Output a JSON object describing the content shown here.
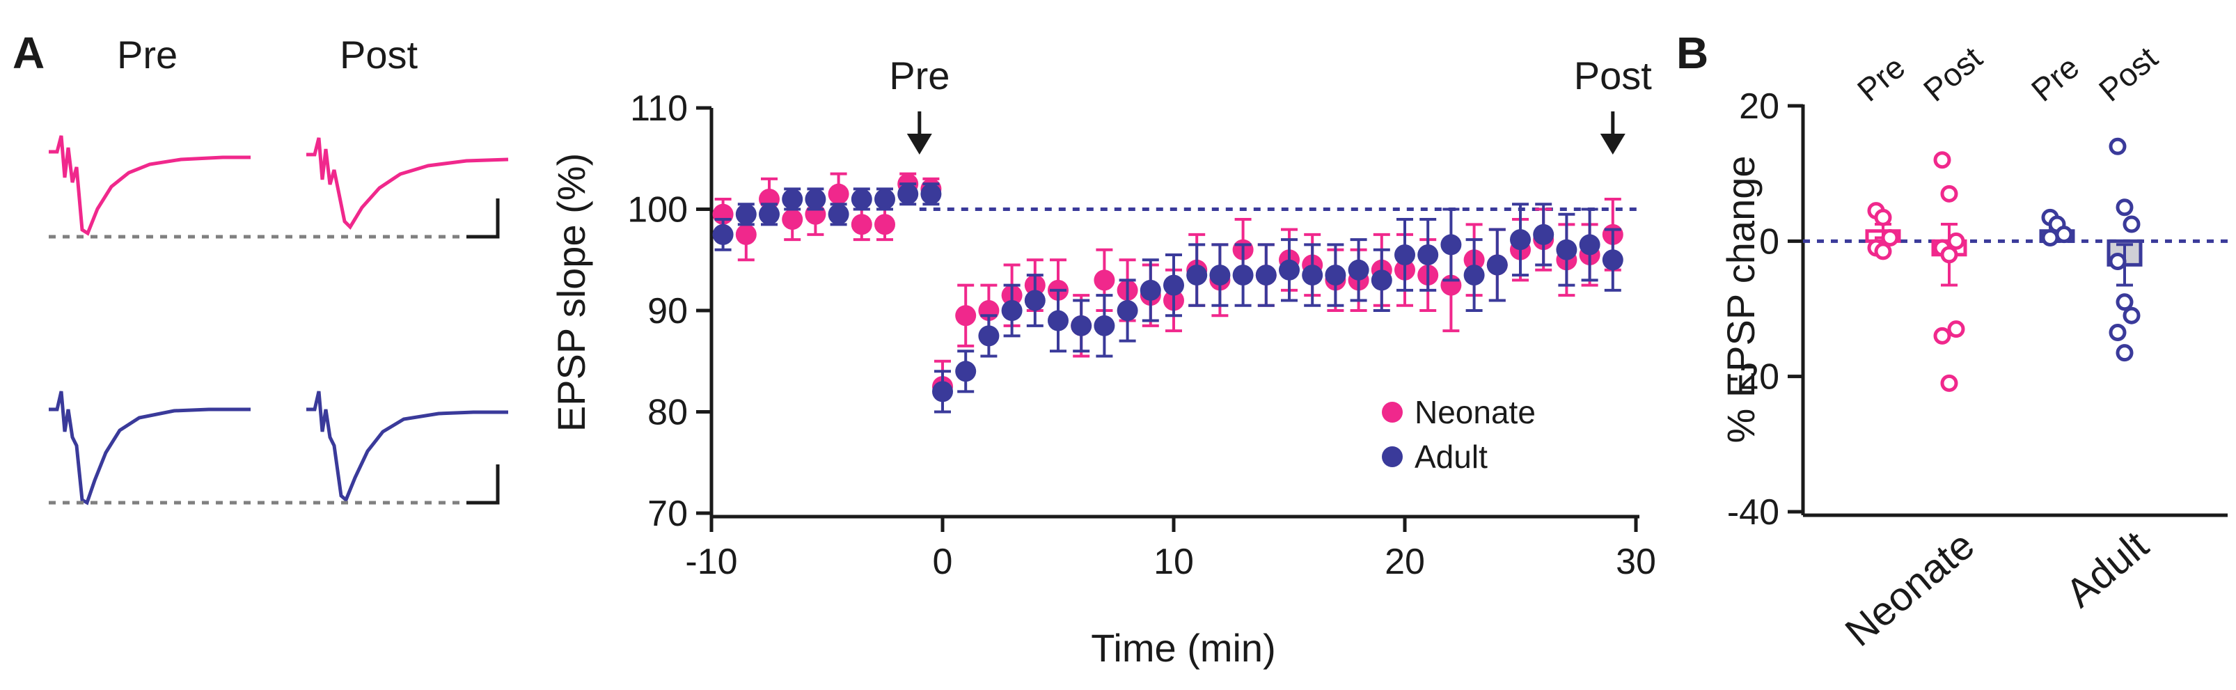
{
  "panels": {
    "a_letter": "A",
    "b_letter": "B",
    "trace_pre_label": "Pre",
    "trace_post_label": "Post"
  },
  "colors": {
    "neonate": "#f0288c",
    "adult": "#3a3a9a",
    "dotted_baseline": "#808080",
    "bar_fill_adult": "#cfcfd6"
  },
  "chart_data": [
    {
      "type": "scatter",
      "xlabel": "Time (min)",
      "ylabel": "EPSP slope (%)",
      "xlim": [
        -10,
        30
      ],
      "ylim": [
        70,
        110
      ],
      "xticks": [
        -10,
        0,
        10,
        20,
        30
      ],
      "yticks": [
        70,
        80,
        90,
        100,
        110
      ],
      "reference_line": 100,
      "annotations": [
        {
          "label": "Pre",
          "x": -1
        },
        {
          "label": "Post",
          "x": 29
        }
      ],
      "legend_position": "bottom-right",
      "series": [
        {
          "name": "Neonate",
          "x": [
            -9.5,
            -8.5,
            -7.5,
            -6.5,
            -5.5,
            -4.5,
            -3.5,
            -2.5,
            -1.5,
            -0.5,
            0,
            1,
            2,
            3,
            4,
            5,
            6,
            7,
            8,
            9,
            10,
            11,
            12,
            13,
            14,
            15,
            16,
            17,
            18,
            19,
            20,
            21,
            22,
            23,
            24,
            25,
            26,
            27,
            28,
            29
          ],
          "y": [
            99.5,
            97.5,
            101,
            99,
            99.5,
            101.5,
            98.5,
            98.5,
            102.5,
            102,
            82.5,
            89.5,
            90,
            91.5,
            92.5,
            92,
            88.5,
            93,
            92,
            91.5,
            91,
            94,
            93,
            96,
            93.5,
            95,
            94.5,
            93,
            93,
            94,
            94,
            93.5,
            92.5,
            95,
            94.5,
            96,
            97,
            95,
            95.5,
            97.5
          ],
          "err": [
            1.5,
            2.5,
            2,
            2,
            2,
            2,
            1.5,
            1.5,
            1,
            1,
            2.5,
            3,
            2.5,
            3,
            2.5,
            3,
            3,
            3,
            3,
            3,
            3,
            3.5,
            3.5,
            3,
            3,
            3,
            3,
            3,
            3,
            3.5,
            3.5,
            3.5,
            4.5,
            3.5,
            3.5,
            3,
            3,
            3.5,
            3,
            3.5
          ]
        },
        {
          "name": "Adult",
          "x": [
            -9.5,
            -8.5,
            -7.5,
            -6.5,
            -5.5,
            -4.5,
            -3.5,
            -2.5,
            -1.5,
            -0.5,
            0,
            1,
            2,
            3,
            4,
            5,
            6,
            7,
            8,
            9,
            10,
            11,
            12,
            13,
            14,
            15,
            16,
            17,
            18,
            19,
            20,
            21,
            22,
            23,
            24,
            25,
            26,
            27,
            28,
            29
          ],
          "y": [
            97.5,
            99.5,
            99.5,
            101,
            101,
            99.5,
            101,
            101,
            101.5,
            101.5,
            82,
            84,
            87.5,
            90,
            91,
            89,
            88.5,
            88.5,
            90,
            92,
            92.5,
            93.5,
            93.5,
            93.5,
            93.5,
            94,
            93.5,
            93.5,
            94,
            93,
            95.5,
            95.5,
            96.5,
            93.5,
            94.5,
            97,
            97.5,
            96,
            96.5,
            95
          ],
          "err": [
            1.5,
            1,
            1,
            1,
            1,
            1,
            1,
            1,
            1,
            1,
            2,
            2,
            2,
            2.5,
            2.5,
            3,
            2.5,
            3,
            3,
            3,
            3,
            3,
            3,
            3,
            3,
            3,
            3,
            3,
            3,
            3,
            3.5,
            3.5,
            3.5,
            3.5,
            3.5,
            3.5,
            3,
            3.5,
            3.5,
            3
          ]
        }
      ]
    },
    {
      "type": "bar",
      "ylabel": "% EPSP change",
      "ylim": [
        -40,
        20
      ],
      "yticks": [
        -40,
        -20,
        0,
        20
      ],
      "reference_line": 0,
      "groups": [
        "Neonate",
        "Adult"
      ],
      "subgroups": [
        "Pre",
        "Post"
      ],
      "series": [
        {
          "group": "Neonate",
          "condition": "Pre",
          "mean": 1.5,
          "err": 1,
          "points": [
            4.5,
            3.5,
            0.5,
            -1,
            -1.5
          ]
        },
        {
          "group": "Neonate",
          "condition": "Post",
          "mean": -2,
          "err": 4.5,
          "points": [
            12,
            7,
            0,
            -1,
            -2,
            -13,
            -14,
            -21
          ]
        },
        {
          "group": "Adult",
          "condition": "Pre",
          "mean": 1.5,
          "err": 0.5,
          "points": [
            3.5,
            2.5,
            1,
            0.5
          ]
        },
        {
          "group": "Adult",
          "condition": "Post",
          "mean": -3.5,
          "err": 3,
          "points": [
            14,
            5,
            2.5,
            -3,
            -9,
            -11,
            -13.5,
            -16.5
          ]
        }
      ]
    }
  ]
}
